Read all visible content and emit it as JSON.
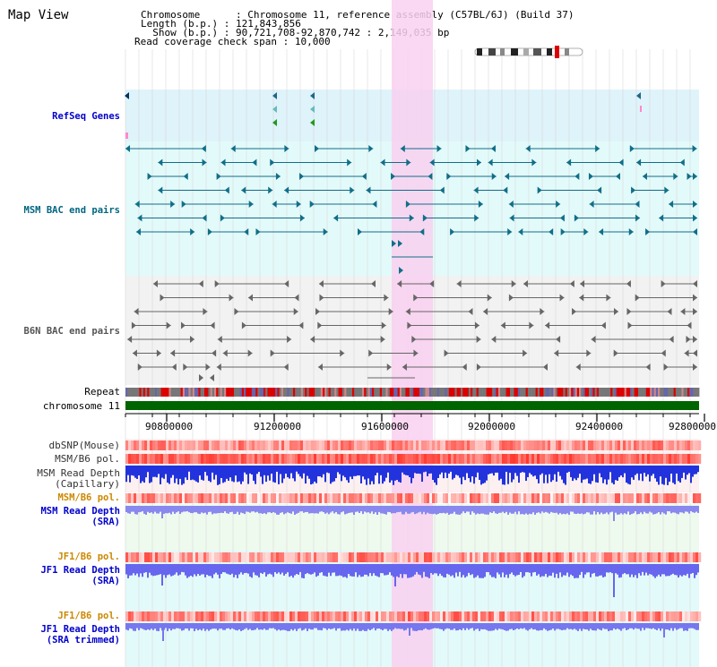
{
  "title": "Map View",
  "info": {
    "chromosome_label": "Chromosome",
    "chromosome_value": "Chromosome 11, reference assembly (C57BL/6J) (Build 37)",
    "length_label": "Length (b.p.)",
    "length_value": "121,843,856",
    "show_label": "Show (b.p.)",
    "show_value": "90,721,708-92,870,742 : 2,149,035 bp",
    "span_label": "Read coverage check span",
    "span_value": "10,000"
  },
  "tracks": {
    "refseq": "RefSeq Genes",
    "msm_bac": "MSM BAC end pairs",
    "b6n_bac": "B6N BAC end pairs",
    "repeat": "Repeat",
    "chromosome": "chromosome 11",
    "dbsnp": "dbSNP(Mouse)",
    "msm_b6_pol_1": "MSM/B6 pol.",
    "msm_depth_cap_1": "MSM Read Depth",
    "msm_depth_cap_2": "(Capillary)",
    "msm_b6_pol_2": "MSM/B6 pol.",
    "msm_depth_sra_1": "MSM Read Depth",
    "msm_depth_sra_2": "(SRA)",
    "jf1_b6_pol_1": "JF1/B6 pol.",
    "jf1_depth_sra_1": "JF1 Read Depth",
    "jf1_depth_sra_2": "(SRA)",
    "jf1_b6_pol_2": "JF1/B6 pol.",
    "jf1_depth_trim_1": "JF1 Read Depth",
    "jf1_depth_trim_2": "(SRA trimmed)"
  },
  "axis": {
    "ticks": [
      "90800000",
      "91200000",
      "91600000",
      "92000000",
      "92400000",
      "92800000"
    ]
  },
  "colors": {
    "refseq_label": "#0000cc",
    "msm_label": "#006680",
    "b6n_label": "#555555",
    "pol_label": "#cc8800",
    "depth_label": "#0000cc",
    "highlight": "#f9d0f0",
    "chromosome_bar": "#006400"
  }
}
